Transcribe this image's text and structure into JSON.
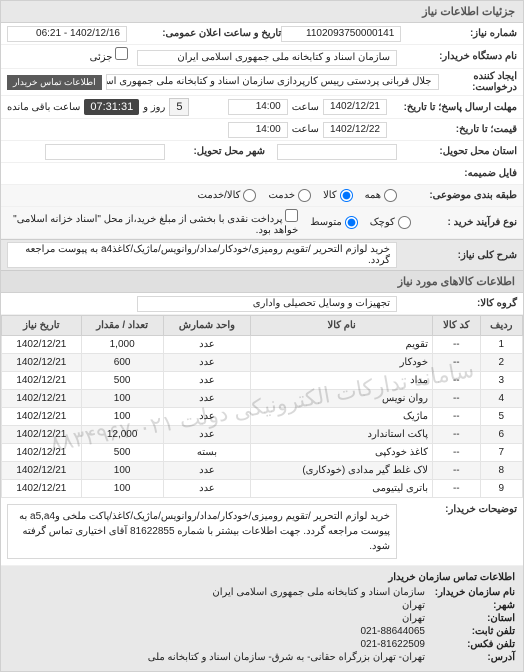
{
  "sections": {
    "details_header": "جزئیات اطلاعات نیاز",
    "needed_items_header": "اطلاعات کالاهای مورد نیاز",
    "buyer_contact_header": "اطلاعات تماس سازمان خریدار"
  },
  "fields": {
    "need_no_label": "شماره نیاز:",
    "need_no": "1102093750000141",
    "announce_datetime_label": "تاریخ و ساعت اعلان عمومی:",
    "announce_datetime": "1402/12/16 - 06:21",
    "buyer_org_label": "نام دستگاه خریدار:",
    "buyer_org": "سازمان اسناد و کتابخانه ملی جمهوری اسلامی ایران",
    "partial_label": "جزئی",
    "requester_label": "ایجاد کننده درخواست:",
    "requester": "جلال قربانی پردستی رییس کارپردازی سازمان اسناد و کتابخانه ملی جمهوری اسلامی ایران",
    "contact_btn": "اطلاعات تماس خریدار",
    "deadline_label": "مهلت ارسال پاسخ؛ تا تاریخ:",
    "deadline_date": "1402/12/21",
    "time_label": "ساعت",
    "deadline_time": "14:00",
    "remaining_label": "ساعت باقی مانده",
    "remaining_days": "5",
    "remaining_day_label": "روز و",
    "remaining_time": "07:31:31",
    "action_to_label": "قیمت؛ تا تاریخ:",
    "action_date": "1402/12/22",
    "action_time": "14:00",
    "province_label": "استان محل تحویل:",
    "city_label": "شهر محل تحویل:",
    "attach_label": "فایل ضمیمه:",
    "package_label": "طبقه بندی موضوعی:",
    "pkg_all": "همه",
    "pkg_goods": "کالا",
    "pkg_services": "خدمت",
    "pkg_collection": "کالا/خدمت",
    "purchase_type_label": "نوع فرآیند خرید :",
    "pt_small": "کوچک",
    "pt_medium": "متوسط",
    "pt_note": "پرداخت نقدی با بخشی از مبلغ خرید،از محل \"اسناد خزانه اسلامی\" خواهد بود.",
    "need_title_label": "شرح کلی نیاز:",
    "need_title": "خرید لوازم التحریر /تقویم رومیزی/خودکار/مداد/روانویس/ماژیک/کاغذa4 به پیوست مراجعه گردد.",
    "group_label": "گروه کالا:",
    "group": "تجهیزات و وسایل تحصیلی واداری",
    "desc_label": "توضیحات خریدار:",
    "desc": "خرید لوازم التحریر /تقویم رومیزی/خودکار/مداد/روانویس/ماژیک/کاغذ/پاکت ملخی وa5,a4 به پیوست مراجعه گردد. جهت اطلاعات بیشتر با شماره 81622855 آقای اختیاری تماس گرفته شود."
  },
  "table": {
    "watermark": "سامانه تدارکات الکترونیکی دولت\n۰۲۱-۸۸۳۴۹۶۷",
    "headers": {
      "row": "ردیف",
      "code": "کد کالا",
      "name": "نام کالا",
      "unit": "واحد شمارش",
      "qty": "تعداد / مقدار",
      "date": "تاریخ نیاز"
    },
    "rows": [
      {
        "idx": "1",
        "code": "--",
        "name": "تقویم",
        "unit": "عدد",
        "qty": "1,000",
        "date": "1402/12/21"
      },
      {
        "idx": "2",
        "code": "--",
        "name": "خودکار",
        "unit": "عدد",
        "qty": "600",
        "date": "1402/12/21"
      },
      {
        "idx": "3",
        "code": "--",
        "name": "مداد",
        "unit": "عدد",
        "qty": "500",
        "date": "1402/12/21"
      },
      {
        "idx": "4",
        "code": "--",
        "name": "روان نویس",
        "unit": "عدد",
        "qty": "100",
        "date": "1402/12/21"
      },
      {
        "idx": "5",
        "code": "--",
        "name": "ماژیک",
        "unit": "عدد",
        "qty": "100",
        "date": "1402/12/21"
      },
      {
        "idx": "6",
        "code": "--",
        "name": "پاکت استاندارد",
        "unit": "عدد",
        "qty": "12,000",
        "date": "1402/12/21"
      },
      {
        "idx": "7",
        "code": "--",
        "name": "کاغذ خودکپی",
        "unit": "بسته",
        "qty": "500",
        "date": "1402/12/21"
      },
      {
        "idx": "8",
        "code": "--",
        "name": "لاک غلط گیر مدادی (خودکاری)",
        "unit": "عدد",
        "qty": "100",
        "date": "1402/12/21"
      },
      {
        "idx": "9",
        "code": "--",
        "name": "باتری لیتیومی",
        "unit": "عدد",
        "qty": "100",
        "date": "1402/12/21"
      }
    ]
  },
  "footer": {
    "org_label": "نام سازمان خریدار:",
    "org": "سازمان اسناد و کتابخانه ملی جمهوری اسلامی ایران",
    "city_label": "شهر:",
    "city": "تهران",
    "province_label": "استان:",
    "province": "تهران",
    "phone_label": "تلفن ثابت:",
    "phone": "021-88644065",
    "fax_label": "تلفن فکس:",
    "fax": "021-81622509",
    "addr_label": "آدرس:",
    "addr": "تهران- تهران بزرگراه حقانی- به شرق- سازمان اسناد و کتابخانه ملی"
  }
}
